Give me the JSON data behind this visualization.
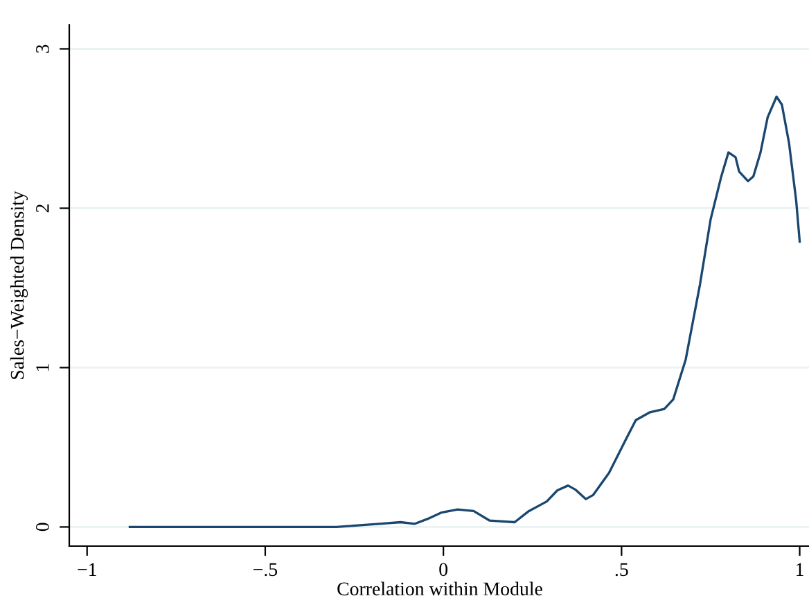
{
  "chart_data": {
    "type": "line",
    "xlabel": "Correlation within Module",
    "ylabel": "Sales−Weighted Density",
    "x": [
      -0.88,
      -0.69,
      -0.54,
      -0.42,
      -0.3,
      -0.24,
      -0.18,
      -0.12,
      -0.08,
      -0.045,
      -0.006,
      0.04,
      0.085,
      0.13,
      0.2,
      0.24,
      0.29,
      0.32,
      0.35,
      0.37,
      0.4,
      0.42,
      0.465,
      0.51,
      0.54,
      0.58,
      0.62,
      0.645,
      0.68,
      0.72,
      0.75,
      0.78,
      0.8,
      0.82,
      0.83,
      0.855,
      0.87,
      0.89,
      0.91,
      0.935,
      0.95,
      0.97,
      0.99,
      1.0
    ],
    "series": [
      {
        "color": "#1a476f",
        "values": [
          0,
          0,
          0,
          0,
          0,
          0.01,
          0.02,
          0.03,
          0.02,
          0.05,
          0.09,
          0.11,
          0.1,
          0.04,
          0.03,
          0.1,
          0.16,
          0.23,
          0.26,
          0.235,
          0.175,
          0.2,
          0.34,
          0.54,
          0.67,
          0.72,
          0.74,
          0.8,
          1.05,
          1.52,
          1.93,
          2.2,
          2.35,
          2.32,
          2.23,
          2.17,
          2.2,
          2.35,
          2.57,
          2.7,
          2.65,
          2.41,
          2.05,
          1.79
        ]
      }
    ],
    "xlim": [
      -1.05,
      1.03
    ],
    "ylim": [
      -0.12,
      3.15
    ],
    "xticks": [
      {
        "value": -1,
        "label": "−1"
      },
      {
        "value": -0.5,
        "label": "−.5"
      },
      {
        "value": 0,
        "label": "0"
      },
      {
        "value": 0.5,
        "label": ".5"
      },
      {
        "value": 1,
        "label": "1"
      }
    ],
    "yticks": [
      0,
      1,
      2,
      3
    ],
    "grid": "y",
    "legend": false,
    "marker": "none",
    "line_style": "solid"
  }
}
